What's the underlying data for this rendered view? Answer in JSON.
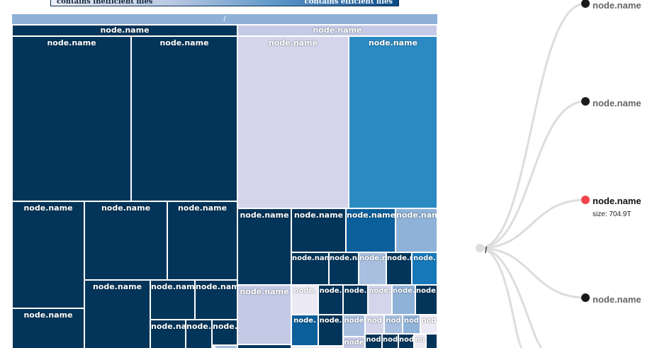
{
  "legend": {
    "left_text": "contains inefficient files",
    "right_text": "contains efficient files"
  },
  "treemap": {
    "root_label": "/",
    "node_label": "node.name",
    "tiny_label_a": "node.nam",
    "tiny_label_b": "node.r",
    "tiny_label_c": "node.",
    "tiny_label_d": "node",
    "tiny_label_e": "nod",
    "tiny_label_f": "no"
  },
  "tree": {
    "root_label": "/",
    "nodes": [
      {
        "label": "node.name"
      },
      {
        "label": "node.name"
      },
      {
        "label": "node.name",
        "size": "size: 704.9T"
      },
      {
        "label": "node.name"
      }
    ]
  },
  "colors": {
    "active_node": "#f0434b",
    "leaf_node": "#1a1a1a",
    "root_node": "#dddddd",
    "link": "#dddddd"
  }
}
